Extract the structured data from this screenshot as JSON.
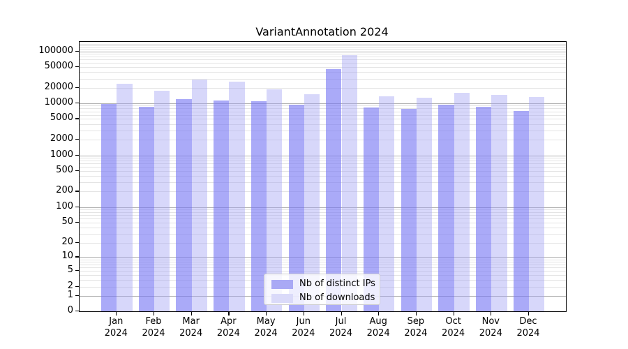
{
  "title": "VariantAnnotation 2024",
  "legend": {
    "items": [
      {
        "label": "Nb of distinct IPs",
        "color": "#a9a9f5"
      },
      {
        "label": "Nb of downloads",
        "color": "#dadaf9"
      }
    ]
  },
  "axes": {
    "y_tick_labels": [
      "100000",
      "50000",
      "20000",
      "10000",
      "5000",
      "2000",
      "1000",
      "500",
      "200",
      "100",
      "50",
      "20",
      "10",
      "5",
      "2",
      "1",
      "0"
    ],
    "x_months": [
      "Jan",
      "Feb",
      "Mar",
      "Apr",
      "May",
      "Jun",
      "Jul",
      "Aug",
      "Sep",
      "Oct",
      "Nov",
      "Dec"
    ],
    "x_year": "2024"
  },
  "colors": {
    "ip_bar": "rgba(118,118,244,0.62)",
    "dl_bar": "rgba(160,160,242,0.42)",
    "ip_solid": "#a9a9f5",
    "dl_solid": "#dadaf9",
    "grid_major": "#b0b0b0",
    "grid_minor": "#e4e4e4"
  },
  "chart_data": {
    "type": "bar",
    "title": "VariantAnnotation 2024",
    "categories": [
      "Jan 2024",
      "Feb 2024",
      "Mar 2024",
      "Apr 2024",
      "May 2024",
      "Jun 2024",
      "Jul 2024",
      "Aug 2024",
      "Sep 2024",
      "Oct 2024",
      "Nov 2024",
      "Dec 2024"
    ],
    "series": [
      {
        "name": "Nb of distinct IPs",
        "values": [
          9600,
          8650,
          12100,
          11400,
          10900,
          9300,
          45000,
          8200,
          7800,
          9400,
          8650,
          7100
        ]
      },
      {
        "name": "Nb of downloads",
        "values": [
          24000,
          17500,
          28500,
          26000,
          18500,
          15000,
          85000,
          13800,
          12800,
          15800,
          14300,
          13100
        ]
      }
    ],
    "xlabel": "",
    "ylabel": "",
    "yscale": "log1p",
    "ylim": [
      0,
      152000
    ],
    "yticks": [
      0,
      1,
      2,
      5,
      10,
      20,
      50,
      100,
      200,
      500,
      1000,
      2000,
      5000,
      10000,
      20000,
      50000,
      100000
    ],
    "grid": "horizontal",
    "legend_position": "lower center"
  }
}
